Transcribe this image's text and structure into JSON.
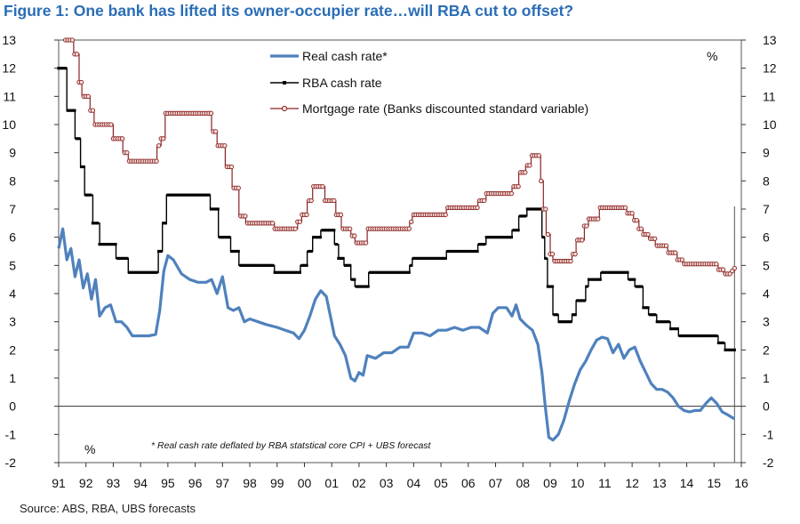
{
  "title": "Figure 1: One bank has lifted its owner-occupier rate…will RBA cut to offset?",
  "source": "Source:  ABS, RBA, UBS forecasts",
  "chart_data": {
    "type": "line",
    "title": "Figure 1: One bank has lifted its owner-occupier rate…will RBA cut to offset?",
    "xlabel": "",
    "ylabel": "%",
    "ylim": [
      -2,
      13
    ],
    "xlim": [
      1991,
      2016
    ],
    "x_tick_labels": [
      "91",
      "92",
      "93",
      "94",
      "95",
      "96",
      "97",
      "98",
      "99",
      "00",
      "01",
      "02",
      "03",
      "04",
      "05",
      "06",
      "07",
      "08",
      "09",
      "10",
      "11",
      "12",
      "13",
      "14",
      "15",
      "16"
    ],
    "y_ticks": [
      -2,
      -1,
      0,
      1,
      2,
      3,
      4,
      5,
      6,
      7,
      8,
      9,
      10,
      11,
      12,
      13
    ],
    "left_unit_label": "%",
    "right_unit_label": "%",
    "forecast_marker_x": 2015.75,
    "footnote": "* Real cash rate deflated by RBA statstical core CPI + UBS forecast",
    "series": [
      {
        "name": "Real cash rate*",
        "color": "#4f81bd",
        "style": "thick",
        "points": [
          [
            1991.0,
            5.6
          ],
          [
            1991.15,
            6.3
          ],
          [
            1991.3,
            5.2
          ],
          [
            1991.45,
            5.6
          ],
          [
            1991.6,
            4.6
          ],
          [
            1991.75,
            5.2
          ],
          [
            1991.9,
            4.2
          ],
          [
            1992.05,
            4.7
          ],
          [
            1992.2,
            3.8
          ],
          [
            1992.35,
            4.5
          ],
          [
            1992.5,
            3.2
          ],
          [
            1992.7,
            3.5
          ],
          [
            1992.9,
            3.6
          ],
          [
            1993.1,
            3.0
          ],
          [
            1993.3,
            3.0
          ],
          [
            1993.5,
            2.8
          ],
          [
            1993.7,
            2.5
          ],
          [
            1994.0,
            2.5
          ],
          [
            1994.3,
            2.5
          ],
          [
            1994.55,
            2.55
          ],
          [
            1994.7,
            3.4
          ],
          [
            1994.85,
            4.8
          ],
          [
            1995.0,
            5.35
          ],
          [
            1995.2,
            5.2
          ],
          [
            1995.5,
            4.7
          ],
          [
            1995.8,
            4.5
          ],
          [
            1996.1,
            4.4
          ],
          [
            1996.4,
            4.4
          ],
          [
            1996.6,
            4.5
          ],
          [
            1996.8,
            4.0
          ],
          [
            1997.0,
            4.6
          ],
          [
            1997.2,
            3.5
          ],
          [
            1997.4,
            3.4
          ],
          [
            1997.6,
            3.5
          ],
          [
            1997.8,
            3.0
          ],
          [
            1998.0,
            3.1
          ],
          [
            1998.3,
            3.0
          ],
          [
            1998.6,
            2.9
          ],
          [
            1999.0,
            2.8
          ],
          [
            1999.3,
            2.7
          ],
          [
            1999.6,
            2.6
          ],
          [
            1999.8,
            2.4
          ],
          [
            2000.0,
            2.7
          ],
          [
            2000.2,
            3.2
          ],
          [
            2000.4,
            3.8
          ],
          [
            2000.6,
            4.1
          ],
          [
            2000.8,
            3.9
          ],
          [
            2000.95,
            3.2
          ],
          [
            2001.1,
            2.5
          ],
          [
            2001.3,
            2.2
          ],
          [
            2001.5,
            1.8
          ],
          [
            2001.7,
            1.0
          ],
          [
            2001.85,
            0.9
          ],
          [
            2002.0,
            1.2
          ],
          [
            2002.15,
            1.1
          ],
          [
            2002.3,
            1.8
          ],
          [
            2002.6,
            1.7
          ],
          [
            2002.9,
            1.9
          ],
          [
            2003.2,
            1.9
          ],
          [
            2003.5,
            2.1
          ],
          [
            2003.8,
            2.1
          ],
          [
            2004.0,
            2.6
          ],
          [
            2004.3,
            2.6
          ],
          [
            2004.6,
            2.5
          ],
          [
            2004.9,
            2.7
          ],
          [
            2005.2,
            2.7
          ],
          [
            2005.5,
            2.8
          ],
          [
            2005.8,
            2.7
          ],
          [
            2006.1,
            2.8
          ],
          [
            2006.4,
            2.8
          ],
          [
            2006.7,
            2.6
          ],
          [
            2006.9,
            3.3
          ],
          [
            2007.1,
            3.5
          ],
          [
            2007.4,
            3.5
          ],
          [
            2007.6,
            3.2
          ],
          [
            2007.75,
            3.6
          ],
          [
            2007.9,
            3.1
          ],
          [
            2008.1,
            2.9
          ],
          [
            2008.35,
            2.7
          ],
          [
            2008.55,
            2.2
          ],
          [
            2008.7,
            1.2
          ],
          [
            2008.82,
            0.0
          ],
          [
            2008.95,
            -1.1
          ],
          [
            2009.1,
            -1.2
          ],
          [
            2009.3,
            -1.0
          ],
          [
            2009.5,
            -0.5
          ],
          [
            2009.7,
            0.2
          ],
          [
            2009.9,
            0.8
          ],
          [
            2010.1,
            1.3
          ],
          [
            2010.3,
            1.6
          ],
          [
            2010.5,
            2.0
          ],
          [
            2010.7,
            2.35
          ],
          [
            2010.9,
            2.45
          ],
          [
            2011.1,
            2.4
          ],
          [
            2011.3,
            1.9
          ],
          [
            2011.5,
            2.2
          ],
          [
            2011.7,
            1.7
          ],
          [
            2011.9,
            2.0
          ],
          [
            2012.1,
            2.1
          ],
          [
            2012.3,
            1.6
          ],
          [
            2012.5,
            1.2
          ],
          [
            2012.7,
            0.8
          ],
          [
            2012.9,
            0.6
          ],
          [
            2013.1,
            0.6
          ],
          [
            2013.3,
            0.5
          ],
          [
            2013.5,
            0.3
          ],
          [
            2013.7,
            0.0
          ],
          [
            2013.9,
            -0.15
          ],
          [
            2014.1,
            -0.2
          ],
          [
            2014.3,
            -0.15
          ],
          [
            2014.5,
            -0.15
          ],
          [
            2014.7,
            0.1
          ],
          [
            2014.9,
            0.3
          ],
          [
            2015.1,
            0.1
          ],
          [
            2015.3,
            -0.2
          ],
          [
            2015.5,
            -0.3
          ],
          [
            2015.75,
            -0.45
          ]
        ]
      },
      {
        "name": "RBA cash rate",
        "color": "#000000",
        "style": "markers-small",
        "steps": [
          [
            1991.0,
            12.0
          ],
          [
            1991.3,
            10.5
          ],
          [
            1991.6,
            9.5
          ],
          [
            1991.8,
            8.5
          ],
          [
            1991.95,
            7.5
          ],
          [
            1992.25,
            6.5
          ],
          [
            1992.5,
            5.75
          ],
          [
            1993.1,
            5.25
          ],
          [
            1993.55,
            4.75
          ],
          [
            1994.65,
            5.5
          ],
          [
            1994.8,
            6.5
          ],
          [
            1994.95,
            7.5
          ],
          [
            1996.55,
            7.0
          ],
          [
            1996.85,
            6.0
          ],
          [
            1997.3,
            5.5
          ],
          [
            1997.6,
            5.0
          ],
          [
            1998.9,
            4.75
          ],
          [
            1999.85,
            5.0
          ],
          [
            2000.1,
            5.5
          ],
          [
            2000.3,
            6.0
          ],
          [
            2000.6,
            6.25
          ],
          [
            2001.1,
            5.75
          ],
          [
            2001.25,
            5.25
          ],
          [
            2001.45,
            5.0
          ],
          [
            2001.7,
            4.5
          ],
          [
            2001.85,
            4.25
          ],
          [
            2002.35,
            4.75
          ],
          [
            2003.85,
            5.0
          ],
          [
            2003.95,
            5.25
          ],
          [
            2005.2,
            5.5
          ],
          [
            2006.35,
            5.75
          ],
          [
            2006.65,
            6.0
          ],
          [
            2007.6,
            6.25
          ],
          [
            2007.85,
            6.75
          ],
          [
            2008.15,
            7.0
          ],
          [
            2008.7,
            6.0
          ],
          [
            2008.8,
            5.25
          ],
          [
            2008.9,
            4.25
          ],
          [
            2009.1,
            3.25
          ],
          [
            2009.3,
            3.0
          ],
          [
            2009.8,
            3.25
          ],
          [
            2009.95,
            3.75
          ],
          [
            2010.3,
            4.25
          ],
          [
            2010.4,
            4.5
          ],
          [
            2010.85,
            4.75
          ],
          [
            2011.85,
            4.5
          ],
          [
            2012.1,
            4.25
          ],
          [
            2012.4,
            3.5
          ],
          [
            2012.6,
            3.25
          ],
          [
            2012.9,
            3.0
          ],
          [
            2013.4,
            2.75
          ],
          [
            2013.7,
            2.5
          ],
          [
            2015.15,
            2.25
          ],
          [
            2015.4,
            2.0
          ],
          [
            2015.75,
            2.0
          ]
        ]
      },
      {
        "name": "Mortgage rate (Banks discounted standard variable)",
        "color": "#8b2323",
        "style": "markers-circle",
        "steps": [
          [
            1991.25,
            13.0
          ],
          [
            1991.55,
            12.5
          ],
          [
            1991.75,
            11.5
          ],
          [
            1991.85,
            11.0
          ],
          [
            1992.15,
            10.5
          ],
          [
            1992.3,
            10.0
          ],
          [
            1993.0,
            9.5
          ],
          [
            1993.35,
            9.0
          ],
          [
            1993.55,
            8.7
          ],
          [
            1994.6,
            9.25
          ],
          [
            1994.75,
            9.5
          ],
          [
            1994.9,
            10.4
          ],
          [
            1996.6,
            9.75
          ],
          [
            1996.8,
            9.25
          ],
          [
            1997.1,
            8.5
          ],
          [
            1997.35,
            7.75
          ],
          [
            1997.6,
            6.75
          ],
          [
            1997.85,
            6.5
          ],
          [
            1998.9,
            6.3
          ],
          [
            1999.75,
            6.55
          ],
          [
            1999.9,
            6.8
          ],
          [
            2000.1,
            7.3
          ],
          [
            2000.3,
            7.8
          ],
          [
            2000.75,
            7.3
          ],
          [
            2001.15,
            6.8
          ],
          [
            2001.35,
            6.3
          ],
          [
            2001.7,
            6.05
          ],
          [
            2001.85,
            5.8
          ],
          [
            2002.3,
            6.3
          ],
          [
            2003.85,
            6.55
          ],
          [
            2003.95,
            6.8
          ],
          [
            2005.2,
            7.05
          ],
          [
            2006.35,
            7.3
          ],
          [
            2006.65,
            7.55
          ],
          [
            2007.6,
            7.8
          ],
          [
            2007.85,
            8.3
          ],
          [
            2008.1,
            8.55
          ],
          [
            2008.3,
            8.9
          ],
          [
            2008.65,
            8.0
          ],
          [
            2008.75,
            7.0
          ],
          [
            2008.85,
            6.1
          ],
          [
            2009.0,
            5.4
          ],
          [
            2009.1,
            5.15
          ],
          [
            2009.8,
            5.4
          ],
          [
            2009.95,
            5.9
          ],
          [
            2010.25,
            6.4
          ],
          [
            2010.4,
            6.65
          ],
          [
            2010.8,
            7.05
          ],
          [
            2011.8,
            6.85
          ],
          [
            2012.05,
            6.6
          ],
          [
            2012.25,
            6.3
          ],
          [
            2012.4,
            6.1
          ],
          [
            2012.6,
            5.95
          ],
          [
            2012.85,
            5.7
          ],
          [
            2013.3,
            5.45
          ],
          [
            2013.65,
            5.2
          ],
          [
            2013.85,
            5.05
          ],
          [
            2015.15,
            4.85
          ],
          [
            2015.35,
            4.7
          ],
          [
            2015.6,
            4.8
          ],
          [
            2015.75,
            4.9
          ]
        ]
      }
    ]
  }
}
